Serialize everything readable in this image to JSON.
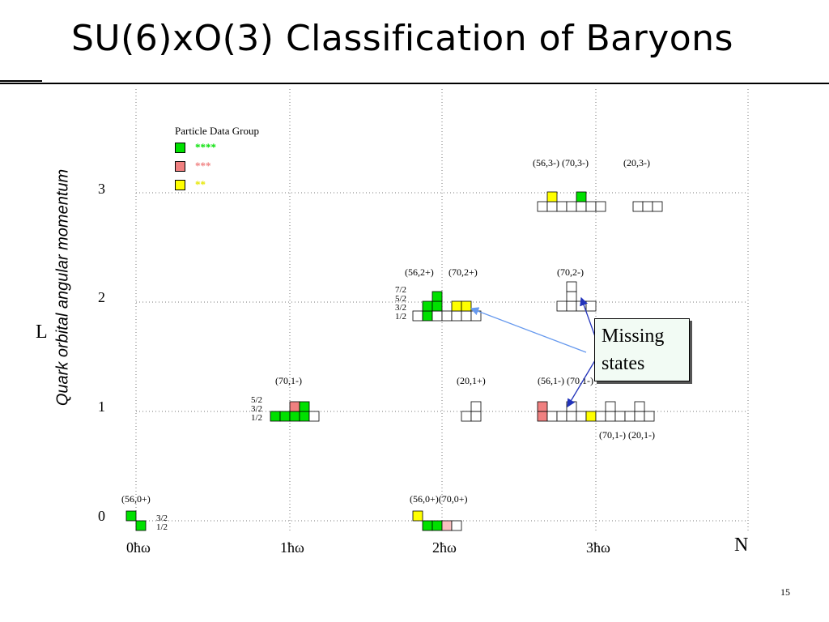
{
  "slide": {
    "title": "SU(6)xO(3) Classification of  Baryons",
    "page_number": "15"
  },
  "axes": {
    "y_title": "Quark orbital angular momentum",
    "y_symbol": "L",
    "x_symbol": "N",
    "y_ticks": [
      "0",
      "1",
      "2",
      "3"
    ],
    "x_ticks": [
      "0ħω",
      "1ħω",
      "2ħω",
      "3ħω"
    ]
  },
  "legend": {
    "title": "Particle Data Group",
    "items": [
      {
        "stars": "****",
        "color": "#00e000"
      },
      {
        "stars": "***",
        "color": "#f08080"
      },
      {
        "stars": "**",
        "color": "#ffff00"
      }
    ]
  },
  "colors": {
    "four_star": "#00e000",
    "three_star": "#f08080",
    "three_star_light": "#f8c0c0",
    "two_star": "#ffff00",
    "empty": "#ffffff",
    "arrow": "#6699ee"
  },
  "callout": {
    "line1": "Missing",
    "line2": "states"
  },
  "spin_labels": {
    "l0": [
      "3/2",
      "1/2"
    ],
    "l1": [
      "5/2",
      "3/2",
      "1/2"
    ],
    "l2": [
      "7/2",
      "5/2",
      "3/2",
      "1/2"
    ]
  },
  "multiplet_labels": {
    "m56_0": "(56,0+)",
    "m56_70_0": "(56,0+)(70,0+)",
    "m70_1": "(70,1-)",
    "m20_1p": "(20,1+)",
    "m56_70_1m": "(56,1-) (70,1-)",
    "m70_20_1m": "(70,1-) (20,1-)",
    "m56_2": "(56,2+)",
    "m70_2p": "(70,2+)",
    "m70_2m": "(70,2-)",
    "m56_70_3": "(56,3-) (70,3-)",
    "m20_3": "(20,3-)"
  }
}
